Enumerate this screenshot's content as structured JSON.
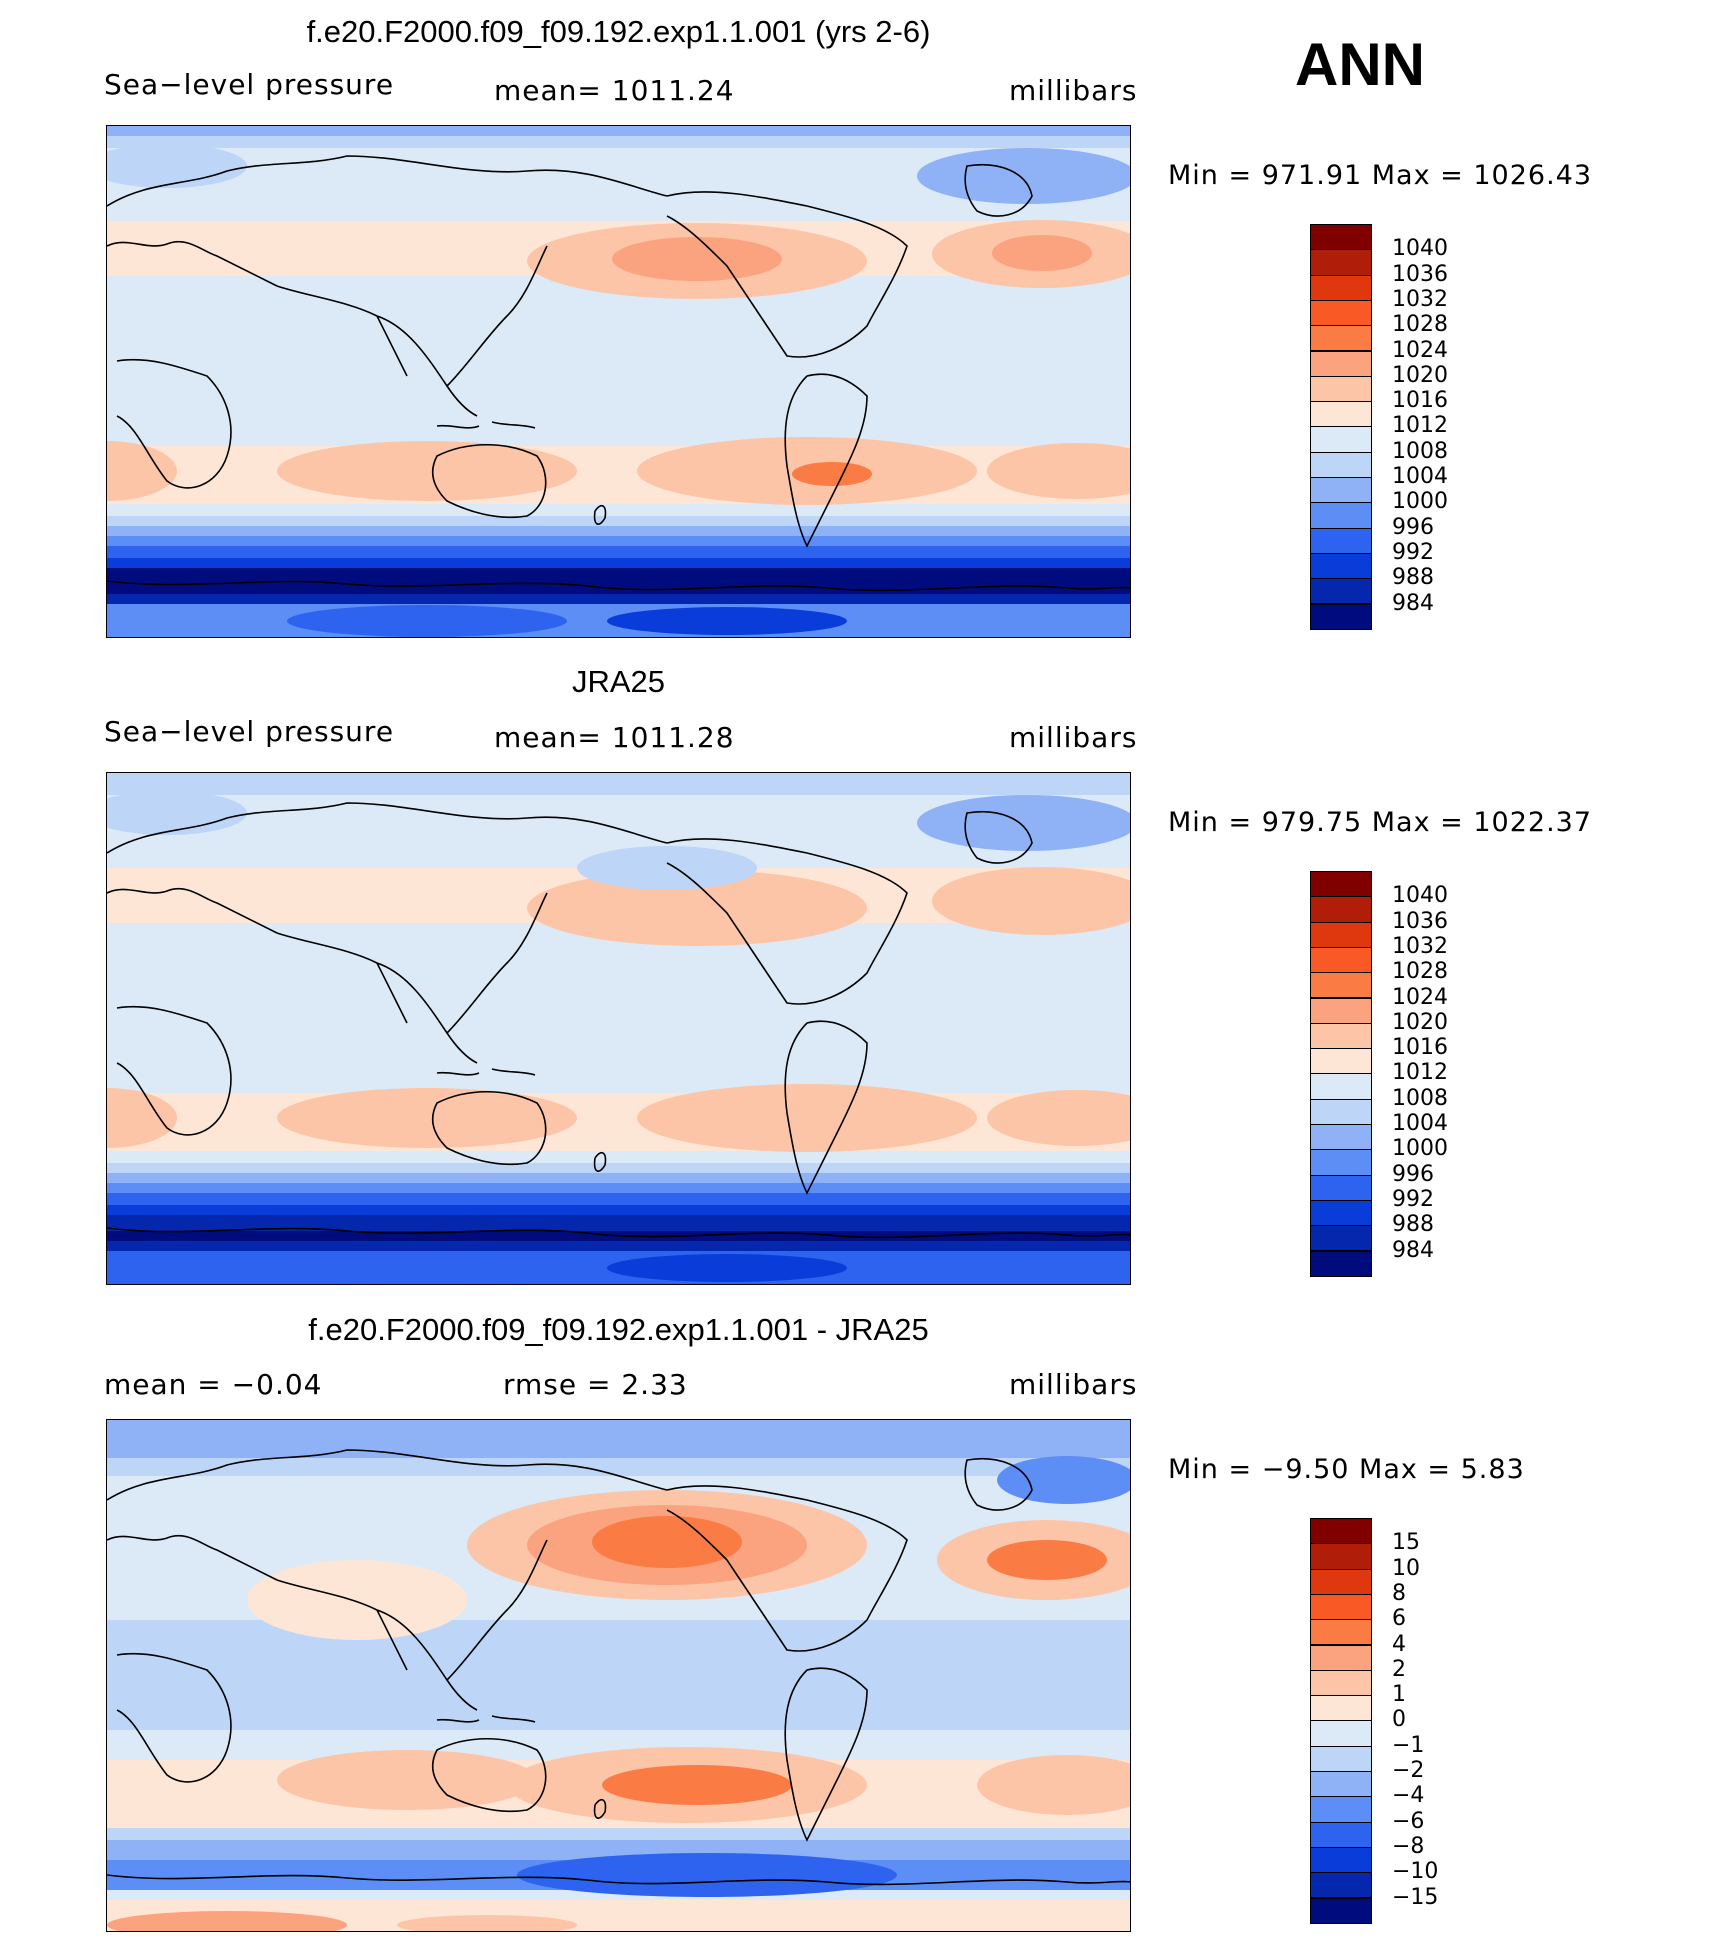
{
  "season": "ANN",
  "panels": [
    {
      "title": "f.e20.F2000.f09_f09.192.exp1.1.001 (yrs 2-6)",
      "left_label": "Sea−level pressure",
      "center_label": "mean=  1011.24",
      "right_label": "millibars",
      "minmax": "Min  =  971.91  Max  =  1026.43",
      "map_kind": "model"
    },
    {
      "title": "JRA25",
      "left_label": "Sea−level pressure",
      "center_label": "mean=  1011.28",
      "right_label": "millibars",
      "minmax": "Min  =  979.75  Max  =  1022.37",
      "map_kind": "obs"
    },
    {
      "title": "f.e20.F2000.f09_f09.192.exp1.1.001 - JRA25",
      "left_label": "mean  =    −0.04",
      "center_label": "rmse  =     2.33",
      "right_label": "millibars",
      "minmax": "Min  =   −9.50  Max  =     5.83",
      "map_kind": "diff"
    }
  ],
  "colorbars": {
    "pressure": {
      "labels": [
        "1040",
        "1036",
        "1032",
        "1028",
        "1024",
        "1020",
        "1016",
        "1012",
        "1008",
        "1004",
        "1000",
        "996",
        "992",
        "988",
        "984"
      ],
      "colors": [
        "#800000",
        "#b01e0a",
        "#e0380e",
        "#f95a25",
        "#fb7b45",
        "#fba27e",
        "#fcc5a8",
        "#fde6d6",
        "#dce9f7",
        "#bdd5f6",
        "#8fb2f7",
        "#5d8ef6",
        "#2e63ef",
        "#0a3cda",
        "#0527ad",
        "#000c7e"
      ]
    },
    "difference": {
      "labels": [
        "15",
        "10",
        "8",
        "6",
        "4",
        "2",
        "1",
        "0",
        "−1",
        "−2",
        "−4",
        "−6",
        "−8",
        "−10",
        "−15"
      ],
      "colors": [
        "#800000",
        "#b01e0a",
        "#e0380e",
        "#f95a25",
        "#fb7b45",
        "#fba27e",
        "#fcc5a8",
        "#fde6d6",
        "#dce9f7",
        "#bdd5f6",
        "#8fb2f7",
        "#5d8ef6",
        "#2e63ef",
        "#0a3cda",
        "#0527ad",
        "#000c7e"
      ]
    }
  }
}
